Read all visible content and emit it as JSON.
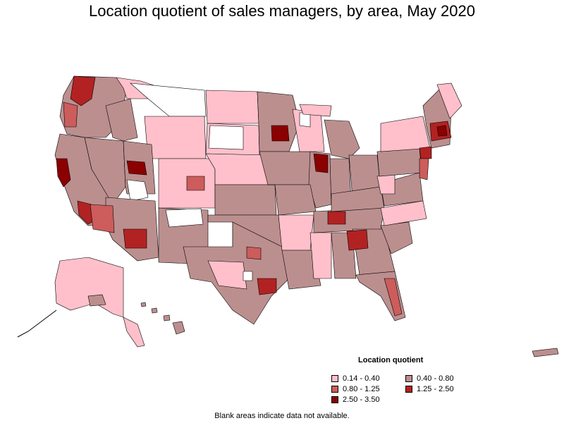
{
  "title": "Location quotient of sales managers, by area, May 2020",
  "legend": {
    "title": "Location quotient",
    "items": [
      {
        "label": "0.14 - 0.40",
        "color": "#ffc0cb"
      },
      {
        "label": "0.40 - 0.80",
        "color": "#bc8f8f"
      },
      {
        "label": "0.80 - 1.25",
        "color": "#cd5c5c"
      },
      {
        "label": "1.25 - 2.50",
        "color": "#b22222"
      },
      {
        "label": "2.50 - 3.50",
        "color": "#8b0000"
      }
    ]
  },
  "footnote": "Blank areas indicate data not available.",
  "colors": {
    "low": "#ffc0cb",
    "mid": "#bc8f8f",
    "midhigh": "#cd5c5c",
    "high": "#b22222",
    "veryhigh": "#8b0000",
    "blank": "#ffffff",
    "border": "#000000"
  }
}
